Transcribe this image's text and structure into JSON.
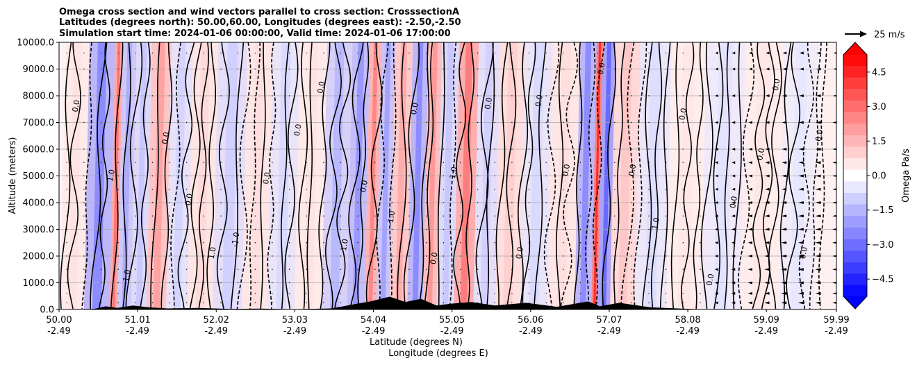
{
  "chart_data": {
    "type": "contour_cross_section",
    "title_lines": [
      "Omega cross section and wind vectors parallel to cross section: CrosssectionA",
      "Latitudes (degrees north): 50.00,60.00, Longitudes (degrees east): -2.50,-2.50",
      "Simulation start time: 2024-01-06 00:00:00, Valid time: 2024-01-06 17:00:00"
    ],
    "ylabel": "Altitude (meters)",
    "xlabel_lines": [
      "Latitude (degrees N)",
      "Longitude (degrees E)"
    ],
    "ylim": [
      0,
      10000
    ],
    "xlim": [
      50.0,
      59.99
    ],
    "yticks": [
      0,
      1000,
      2000,
      3000,
      4000,
      5000,
      6000,
      7000,
      8000,
      9000,
      10000
    ],
    "ytick_labels": [
      "0.0",
      "1000.0",
      "2000.0",
      "3000.0",
      "4000.0",
      "5000.0",
      "6000.0",
      "7000.0",
      "8000.0",
      "9000.0",
      "10000.0"
    ],
    "xticks": [
      {
        "lat": "50.00",
        "lon": "-2.49"
      },
      {
        "lat": "51.01",
        "lon": "-2.49"
      },
      {
        "lat": "52.02",
        "lon": "-2.49"
      },
      {
        "lat": "53.03",
        "lon": "-2.49"
      },
      {
        "lat": "54.04",
        "lon": "-2.49"
      },
      {
        "lat": "55.05",
        "lon": "-2.49"
      },
      {
        "lat": "56.06",
        "lon": "-2.49"
      },
      {
        "lat": "57.07",
        "lon": "-2.49"
      },
      {
        "lat": "58.08",
        "lon": "-2.49"
      },
      {
        "lat": "59.09",
        "lon": "-2.49"
      },
      {
        "lat": "59.99",
        "lon": "-2.49"
      }
    ],
    "grid": "horizontal",
    "colorbar": {
      "label": "Omega Pa/s",
      "range": [
        -5.25,
        5.25
      ],
      "ticks": [
        4.5,
        3.0,
        1.5,
        0.0,
        -1.5,
        -3.0,
        -4.5
      ],
      "tick_labels": [
        "4.5",
        "3.0",
        "1.5",
        "0.0",
        "−1.5",
        "−3.0",
        "−4.5"
      ],
      "colormap": "bwr",
      "extend": "both"
    },
    "vector_key": {
      "label": "25 m/s",
      "value": 25
    },
    "contour_label_values": [
      "0.0",
      "1.0",
      "-1.0"
    ],
    "contour_labels": [
      "0.0",
      "1.0",
      "-1.0",
      "0.0",
      "0.0",
      "1.0",
      "-1.0",
      "0.0",
      "0.0",
      "0.0",
      "1.0",
      "0.0",
      "-1.0",
      "0.0",
      "0.0",
      "1.0",
      "0.0",
      "0.0",
      "0.0",
      "0.0",
      "0.0",
      "0.0",
      "1.0",
      "0.0",
      "0.0",
      "0.0",
      "0.0",
      "0.0",
      "0.0",
      "0.0"
    ],
    "columns": [
      {
        "lat": 50.04,
        "omega": 0.6
      },
      {
        "lat": 50.6,
        "omega": -2.5
      },
      {
        "lat": 50.7,
        "omega": 3.0
      },
      {
        "lat": 50.8,
        "omega": -1.8
      },
      {
        "lat": 51.05,
        "omega": -1.2
      },
      {
        "lat": 51.2,
        "omega": 2.0
      },
      {
        "lat": 51.55,
        "omega": -0.9
      },
      {
        "lat": 51.75,
        "omega": 0.8
      },
      {
        "lat": 52.2,
        "omega": -1.0
      },
      {
        "lat": 52.5,
        "omega": 0.7
      },
      {
        "lat": 52.85,
        "omega": -0.8
      },
      {
        "lat": 53.2,
        "omega": 0.6
      },
      {
        "lat": 53.55,
        "omega": -1.5
      },
      {
        "lat": 53.85,
        "omega": -2.2
      },
      {
        "lat": 54.0,
        "omega": 2.6
      },
      {
        "lat": 54.15,
        "omega": -2.0
      },
      {
        "lat": 54.35,
        "omega": 1.8
      },
      {
        "lat": 54.6,
        "omega": -2.5
      },
      {
        "lat": 54.75,
        "omega": 2.2
      },
      {
        "lat": 54.95,
        "omega": -1.2
      },
      {
        "lat": 55.2,
        "omega": 2.8
      },
      {
        "lat": 55.45,
        "omega": -1.0
      },
      {
        "lat": 55.75,
        "omega": 1.0
      },
      {
        "lat": 56.1,
        "omega": -0.8
      },
      {
        "lat": 56.45,
        "omega": 0.7
      },
      {
        "lat": 56.8,
        "omega": -2.5
      },
      {
        "lat": 56.88,
        "omega": 4.5
      },
      {
        "lat": 56.96,
        "omega": -3.2
      },
      {
        "lat": 57.2,
        "omega": 1.2
      },
      {
        "lat": 57.6,
        "omega": -0.7
      },
      {
        "lat": 58.0,
        "omega": 0.5
      },
      {
        "lat": 58.5,
        "omega": -0.6
      },
      {
        "lat": 59.0,
        "omega": 0.5
      },
      {
        "lat": 59.5,
        "omega": -0.5
      },
      {
        "lat": 59.9,
        "omega": 0.3
      }
    ],
    "terrain": [
      {
        "lat": 50.0,
        "height": 0
      },
      {
        "lat": 50.45,
        "height": 20
      },
      {
        "lat": 50.6,
        "height": 120
      },
      {
        "lat": 50.75,
        "height": 60
      },
      {
        "lat": 50.95,
        "height": 150
      },
      {
        "lat": 51.15,
        "height": 80
      },
      {
        "lat": 51.4,
        "height": 40
      },
      {
        "lat": 51.8,
        "height": 60
      },
      {
        "lat": 52.2,
        "height": 20
      },
      {
        "lat": 52.6,
        "height": 30
      },
      {
        "lat": 53.0,
        "height": 10
      },
      {
        "lat": 53.5,
        "height": 40
      },
      {
        "lat": 53.8,
        "height": 200
      },
      {
        "lat": 54.0,
        "height": 300
      },
      {
        "lat": 54.25,
        "height": 480
      },
      {
        "lat": 54.45,
        "height": 280
      },
      {
        "lat": 54.65,
        "height": 400
      },
      {
        "lat": 54.85,
        "height": 150
      },
      {
        "lat": 55.05,
        "height": 220
      },
      {
        "lat": 55.3,
        "height": 280
      },
      {
        "lat": 55.6,
        "height": 150
      },
      {
        "lat": 56.0,
        "height": 250
      },
      {
        "lat": 56.4,
        "height": 100
      },
      {
        "lat": 56.8,
        "height": 300
      },
      {
        "lat": 56.95,
        "height": 120
      },
      {
        "lat": 57.2,
        "height": 250
      },
      {
        "lat": 57.6,
        "height": 80
      },
      {
        "lat": 58.0,
        "height": 30
      },
      {
        "lat": 58.3,
        "height": 0
      },
      {
        "lat": 59.99,
        "height": 0
      }
    ]
  }
}
